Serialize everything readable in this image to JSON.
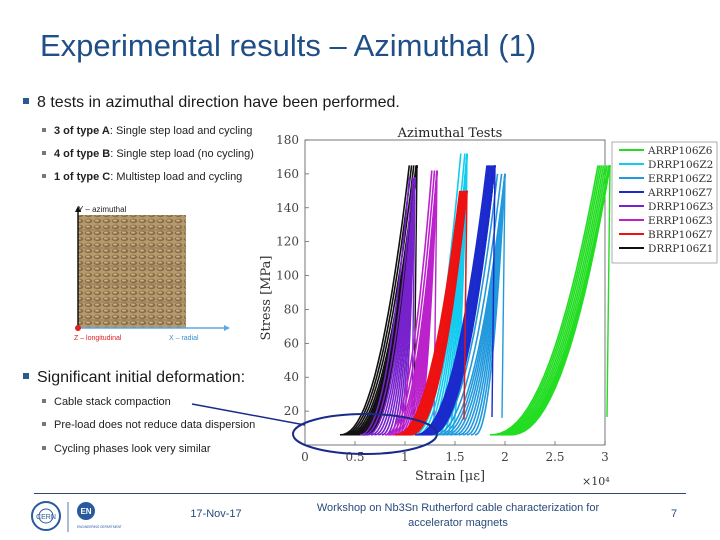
{
  "slide": {
    "title": "Experimental results – Azimuthal (1)",
    "bullet1": "8 tests in azimuthal direction have been performed.",
    "sub1": [
      {
        "bold": "3 of type A",
        "rest": ": Single step load and cycling"
      },
      {
        "bold": "4 of type B",
        "rest": ": Single step load (no cycling)"
      },
      {
        "bold": "1 of type C",
        "rest": ": Multistep load and cycling"
      }
    ],
    "bullet2": "Significant initial deformation:",
    "sub2": [
      "Cable stack compaction",
      "Pre-load does not reduce data dispersion",
      "Cycling phases look very similar"
    ],
    "stack_figure": {
      "y_axis_label": "Y – azimuthal",
      "z_axis_label": "Z – longitudinal",
      "x_axis_label": "X – radial"
    },
    "footer": {
      "date": "17-Nov-17",
      "workshop": "Workshop on Nb3Sn Rutherford cable characterization for accelerator magnets",
      "page": "7",
      "logo_left": "CERN",
      "logo_right_big": "EN",
      "logo_right_small": "ENGINEERING DEPARTMENT"
    },
    "colors": {
      "title": "#1f4f86",
      "bullet": "#2a5a8e",
      "highlight_ellipse": "#1a2a8a"
    }
  },
  "chart_data": {
    "type": "line",
    "title": "Azimuthal Tests",
    "xlabel": "Strain [με]",
    "ylabel": "Stress [MPa]",
    "x_multiplier": "×10⁴",
    "xlim": [
      0,
      3.0
    ],
    "ylim": [
      0,
      180
    ],
    "xticks": [
      "0",
      "0.5",
      "1",
      "1.5",
      "2",
      "2.5",
      "3"
    ],
    "yticks": [
      "20",
      "40",
      "60",
      "80",
      "100",
      "120",
      "140",
      "160",
      "180"
    ],
    "legend_position": "right",
    "series": [
      {
        "name": "ARRP106Z6",
        "color": "#22dd22",
        "x0": 1.85,
        "xr": 2.05,
        "peak_x": 3.05,
        "peak_y": 165
      },
      {
        "name": "DRRP106Z2",
        "color": "#11ccee",
        "x0": 1.0,
        "xr": 1.45,
        "peak_x": 1.62,
        "peak_y": 172
      },
      {
        "name": "ERRP106Z2",
        "color": "#2299dd",
        "x0": 1.25,
        "xr": 1.7,
        "peak_x": 2.0,
        "peak_y": 160
      },
      {
        "name": "ARRP106Z7",
        "color": "#1a2acc",
        "x0": 1.1,
        "xr": 1.25,
        "peak_x": 1.9,
        "peak_y": 165
      },
      {
        "name": "DRRP106Z3",
        "color": "#7722cc",
        "x0": 0.55,
        "xr": 0.95,
        "peak_x": 1.1,
        "peak_y": 158
      },
      {
        "name": "ERRP106Z3",
        "color": "#bb22cc",
        "x0": 0.8,
        "xr": 1.1,
        "peak_x": 1.32,
        "peak_y": 162
      },
      {
        "name": "BRRP106Z7",
        "color": "#ee1111",
        "x0": 0.9,
        "xr": 1.05,
        "peak_x": 1.62,
        "peak_y": 150
      },
      {
        "name": "DRRP106Z1",
        "color": "#111111",
        "x0": 0.35,
        "xr": 0.6,
        "peak_x": 1.12,
        "peak_y": 165
      }
    ]
  }
}
